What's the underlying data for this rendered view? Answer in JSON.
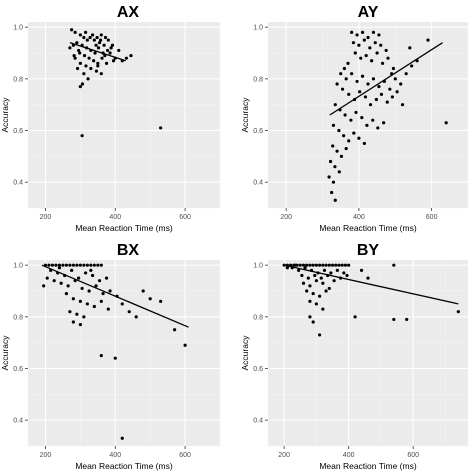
{
  "colors": {
    "panel_bg": "#ebebeb",
    "major_grid": "#ffffff",
    "minor_grid": "#f5f5f5",
    "point": "#000000",
    "line": "#000000"
  },
  "chart_data": [
    {
      "type": "scatter",
      "title": "AX",
      "xlabel": "Mean Reaction Time (ms)",
      "ylabel": "Accuracy",
      "xlim": [
        150,
        700
      ],
      "ylim": [
        0.3,
        1.02
      ],
      "xticks": [
        200,
        400,
        600
      ],
      "yticks": [
        0.4,
        0.6,
        0.8,
        1.0
      ],
      "xtick_labels": [
        "200",
        "400",
        "600"
      ],
      "ytick_labels": [
        "0.4",
        "0.6",
        "0.8",
        "1.0"
      ],
      "grid": true,
      "fit_line": {
        "x": [
          270,
          430
        ],
        "y": [
          0.94,
          0.87
        ]
      },
      "points": [
        [
          275,
          0.99
        ],
        [
          285,
          0.98
        ],
        [
          300,
          0.97
        ],
        [
          310,
          0.96
        ],
        [
          315,
          0.98
        ],
        [
          320,
          0.95
        ],
        [
          328,
          0.96
        ],
        [
          335,
          0.97
        ],
        [
          340,
          0.95
        ],
        [
          348,
          0.96
        ],
        [
          355,
          0.94
        ],
        [
          360,
          0.97
        ],
        [
          368,
          0.93
        ],
        [
          372,
          0.96
        ],
        [
          380,
          0.95
        ],
        [
          290,
          0.94
        ],
        [
          305,
          0.93
        ],
        [
          318,
          0.92
        ],
        [
          330,
          0.91
        ],
        [
          342,
          0.9
        ],
        [
          352,
          0.92
        ],
        [
          365,
          0.9
        ],
        [
          378,
          0.91
        ],
        [
          388,
          0.92
        ],
        [
          295,
          0.91
        ],
        [
          312,
          0.89
        ],
        [
          325,
          0.88
        ],
        [
          338,
          0.87
        ],
        [
          350,
          0.86
        ],
        [
          362,
          0.88
        ],
        [
          280,
          0.93
        ],
        [
          298,
          0.9
        ],
        [
          345,
          0.93
        ],
        [
          358,
          0.95
        ],
        [
          370,
          0.89
        ],
        [
          385,
          0.9
        ],
        [
          392,
          0.93
        ],
        [
          400,
          0.88
        ],
        [
          410,
          0.91
        ],
        [
          420,
          0.87
        ],
        [
          432,
          0.88
        ],
        [
          445,
          0.89
        ],
        [
          270,
          0.92
        ],
        [
          282,
          0.89
        ],
        [
          300,
          0.86
        ],
        [
          316,
          0.85
        ],
        [
          330,
          0.84
        ],
        [
          346,
          0.83
        ],
        [
          360,
          0.82
        ],
        [
          285,
          0.88
        ],
        [
          310,
          0.82
        ],
        [
          322,
          0.8
        ],
        [
          292,
          0.84
        ],
        [
          306,
          0.78
        ],
        [
          300,
          0.77
        ],
        [
          350,
          0.85
        ],
        [
          375,
          0.86
        ],
        [
          395,
          0.87
        ],
        [
          305,
          0.58
        ],
        [
          530,
          0.61
        ]
      ]
    },
    {
      "type": "scatter",
      "title": "AY",
      "xlabel": "Mean Reaction Time (ms)",
      "ylabel": "Accuracy",
      "xlim": [
        150,
        700
      ],
      "ylim": [
        0.3,
        1.02
      ],
      "xticks": [
        200,
        400,
        600
      ],
      "yticks": [
        0.4,
        0.6,
        0.8,
        1.0
      ],
      "xtick_labels": [
        "200",
        "400",
        "600"
      ],
      "ytick_labels": [
        "0.4",
        "0.6",
        "0.8",
        "1.0"
      ],
      "grid": true,
      "fit_line": {
        "x": [
          320,
          630
        ],
        "y": [
          0.66,
          0.94
        ]
      },
      "points": [
        [
          380,
          0.98
        ],
        [
          395,
          0.97
        ],
        [
          410,
          0.98
        ],
        [
          425,
          0.96
        ],
        [
          440,
          0.98
        ],
        [
          455,
          0.97
        ],
        [
          385,
          0.94
        ],
        [
          400,
          0.93
        ],
        [
          415,
          0.95
        ],
        [
          430,
          0.92
        ],
        [
          445,
          0.94
        ],
        [
          460,
          0.93
        ],
        [
          475,
          0.91
        ],
        [
          390,
          0.9
        ],
        [
          405,
          0.88
        ],
        [
          420,
          0.89
        ],
        [
          435,
          0.87
        ],
        [
          450,
          0.9
        ],
        [
          465,
          0.86
        ],
        [
          480,
          0.88
        ],
        [
          495,
          0.84
        ],
        [
          370,
          0.86
        ],
        [
          360,
          0.84
        ],
        [
          350,
          0.82
        ],
        [
          365,
          0.8
        ],
        [
          380,
          0.82
        ],
        [
          395,
          0.79
        ],
        [
          410,
          0.81
        ],
        [
          425,
          0.78
        ],
        [
          440,
          0.8
        ],
        [
          455,
          0.77
        ],
        [
          470,
          0.79
        ],
        [
          485,
          0.76
        ],
        [
          500,
          0.8
        ],
        [
          515,
          0.78
        ],
        [
          530,
          0.82
        ],
        [
          545,
          0.85
        ],
        [
          560,
          0.87
        ],
        [
          340,
          0.78
        ],
        [
          355,
          0.76
        ],
        [
          372,
          0.74
        ],
        [
          388,
          0.72
        ],
        [
          402,
          0.75
        ],
        [
          418,
          0.73
        ],
        [
          432,
          0.7
        ],
        [
          448,
          0.72
        ],
        [
          462,
          0.74
        ],
        [
          478,
          0.71
        ],
        [
          492,
          0.73
        ],
        [
          335,
          0.7
        ],
        [
          348,
          0.68
        ],
        [
          362,
          0.66
        ],
        [
          378,
          0.64
        ],
        [
          392,
          0.67
        ],
        [
          408,
          0.65
        ],
        [
          422,
          0.62
        ],
        [
          438,
          0.64
        ],
        [
          452,
          0.61
        ],
        [
          468,
          0.63
        ],
        [
          330,
          0.62
        ],
        [
          345,
          0.6
        ],
        [
          358,
          0.58
        ],
        [
          372,
          0.56
        ],
        [
          386,
          0.59
        ],
        [
          400,
          0.57
        ],
        [
          415,
          0.55
        ],
        [
          328,
          0.54
        ],
        [
          340,
          0.52
        ],
        [
          352,
          0.5
        ],
        [
          365,
          0.53
        ],
        [
          322,
          0.48
        ],
        [
          334,
          0.46
        ],
        [
          346,
          0.44
        ],
        [
          318,
          0.42
        ],
        [
          330,
          0.4
        ],
        [
          325,
          0.36
        ],
        [
          335,
          0.33
        ],
        [
          490,
          0.82
        ],
        [
          505,
          0.75
        ],
        [
          520,
          0.7
        ],
        [
          540,
          0.92
        ],
        [
          590,
          0.95
        ],
        [
          640,
          0.63
        ]
      ]
    },
    {
      "type": "scatter",
      "title": "BX",
      "xlabel": "Mean Reaction Time (ms)",
      "ylabel": "Accuracy",
      "xlim": [
        150,
        700
      ],
      "ylim": [
        0.3,
        1.02
      ],
      "xticks": [
        200,
        400,
        600
      ],
      "yticks": [
        0.4,
        0.6,
        0.8,
        1.0
      ],
      "xtick_labels": [
        "200",
        "400",
        "600"
      ],
      "ytick_labels": [
        "0.4",
        "0.6",
        "0.8",
        "1.0"
      ],
      "grid": true,
      "fit_line": {
        "x": [
          190,
          610
        ],
        "y": [
          1.0,
          0.76
        ]
      },
      "points": [
        [
          200,
          1.0
        ],
        [
          210,
          1.0
        ],
        [
          220,
          1.0
        ],
        [
          230,
          1.0
        ],
        [
          240,
          1.0
        ],
        [
          250,
          1.0
        ],
        [
          260,
          1.0
        ],
        [
          270,
          1.0
        ],
        [
          280,
          1.0
        ],
        [
          290,
          1.0
        ],
        [
          300,
          1.0
        ],
        [
          310,
          1.0
        ],
        [
          320,
          1.0
        ],
        [
          330,
          1.0
        ],
        [
          340,
          1.0
        ],
        [
          350,
          1.0
        ],
        [
          360,
          1.0
        ],
        [
          215,
          0.98
        ],
        [
          235,
          0.97
        ],
        [
          255,
          0.96
        ],
        [
          275,
          0.98
        ],
        [
          295,
          0.95
        ],
        [
          315,
          0.97
        ],
        [
          335,
          0.96
        ],
        [
          355,
          0.94
        ],
        [
          375,
          0.95
        ],
        [
          225,
          0.94
        ],
        [
          245,
          0.93
        ],
        [
          265,
          0.92
        ],
        [
          285,
          0.94
        ],
        [
          305,
          0.91
        ],
        [
          325,
          0.9
        ],
        [
          345,
          0.92
        ],
        [
          365,
          0.89
        ],
        [
          385,
          0.9
        ],
        [
          405,
          0.88
        ],
        [
          260,
          0.89
        ],
        [
          280,
          0.87
        ],
        [
          300,
          0.86
        ],
        [
          320,
          0.85
        ],
        [
          340,
          0.84
        ],
        [
          360,
          0.86
        ],
        [
          380,
          0.83
        ],
        [
          270,
          0.82
        ],
        [
          290,
          0.81
        ],
        [
          310,
          0.8
        ],
        [
          280,
          0.78
        ],
        [
          300,
          0.77
        ],
        [
          420,
          0.85
        ],
        [
          440,
          0.82
        ],
        [
          460,
          0.8
        ],
        [
          480,
          0.9
        ],
        [
          500,
          0.87
        ],
        [
          530,
          0.86
        ],
        [
          570,
          0.75
        ],
        [
          600,
          0.69
        ],
        [
          360,
          0.65
        ],
        [
          400,
          0.64
        ],
        [
          420,
          0.33
        ],
        [
          195,
          0.92
        ],
        [
          205,
          0.95
        ],
        [
          240,
          0.99
        ],
        [
          330,
          0.98
        ]
      ]
    },
    {
      "type": "scatter",
      "title": "BY",
      "xlabel": "Mean Reaction Time (ms)",
      "ylabel": "Accuracy",
      "xlim": [
        150,
        770
      ],
      "ylim": [
        0.3,
        1.02
      ],
      "xticks": [
        200,
        400,
        600
      ],
      "yticks": [
        0.4,
        0.6,
        0.8,
        1.0
      ],
      "xtick_labels": [
        "200",
        "400",
        "600"
      ],
      "ytick_labels": [
        "0.4",
        "0.6",
        "0.8",
        "1.0"
      ],
      "grid": true,
      "fit_line": {
        "x": [
          200,
          740
        ],
        "y": [
          1.0,
          0.85
        ]
      },
      "points": [
        [
          200,
          1.0
        ],
        [
          210,
          1.0
        ],
        [
          220,
          1.0
        ],
        [
          230,
          1.0
        ],
        [
          240,
          1.0
        ],
        [
          250,
          1.0
        ],
        [
          260,
          1.0
        ],
        [
          270,
          1.0
        ],
        [
          280,
          1.0
        ],
        [
          290,
          1.0
        ],
        [
          300,
          1.0
        ],
        [
          310,
          1.0
        ],
        [
          320,
          1.0
        ],
        [
          330,
          1.0
        ],
        [
          340,
          1.0
        ],
        [
          350,
          1.0
        ],
        [
          360,
          1.0
        ],
        [
          370,
          1.0
        ],
        [
          380,
          1.0
        ],
        [
          390,
          1.0
        ],
        [
          400,
          1.0
        ],
        [
          225,
          0.99
        ],
        [
          245,
          0.98
        ],
        [
          265,
          0.99
        ],
        [
          285,
          0.98
        ],
        [
          305,
          0.97
        ],
        [
          325,
          0.98
        ],
        [
          345,
          0.97
        ],
        [
          365,
          0.98
        ],
        [
          385,
          0.97
        ],
        [
          255,
          0.96
        ],
        [
          275,
          0.95
        ],
        [
          295,
          0.96
        ],
        [
          315,
          0.95
        ],
        [
          335,
          0.96
        ],
        [
          355,
          0.94
        ],
        [
          375,
          0.95
        ],
        [
          260,
          0.93
        ],
        [
          280,
          0.92
        ],
        [
          300,
          0.94
        ],
        [
          320,
          0.93
        ],
        [
          340,
          0.91
        ],
        [
          270,
          0.9
        ],
        [
          290,
          0.89
        ],
        [
          310,
          0.88
        ],
        [
          330,
          0.9
        ],
        [
          280,
          0.86
        ],
        [
          300,
          0.85
        ],
        [
          320,
          0.83
        ],
        [
          440,
          0.98
        ],
        [
          460,
          0.95
        ],
        [
          280,
          0.8
        ],
        [
          290,
          0.78
        ],
        [
          420,
          0.8
        ],
        [
          540,
          0.79
        ],
        [
          580,
          0.79
        ],
        [
          540,
          1.0
        ],
        [
          310,
          0.73
        ],
        [
          740,
          0.82
        ],
        [
          210,
          0.99
        ],
        [
          235,
          1.0
        ],
        [
          395,
          0.96
        ]
      ]
    }
  ]
}
